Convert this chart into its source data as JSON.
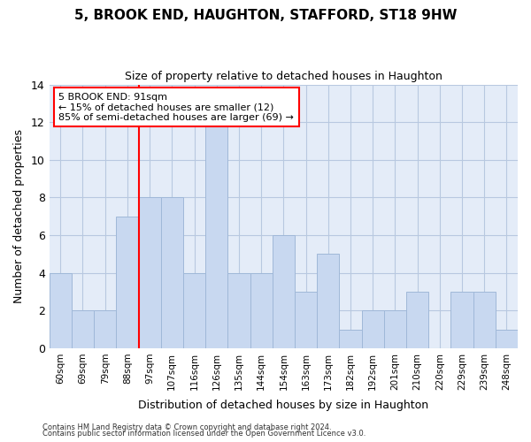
{
  "title": "5, BROOK END, HAUGHTON, STAFFORD, ST18 9HW",
  "subtitle": "Size of property relative to detached houses in Haughton",
  "xlabel": "Distribution of detached houses by size in Haughton",
  "ylabel": "Number of detached properties",
  "bin_labels": [
    "60sqm",
    "69sqm",
    "79sqm",
    "88sqm",
    "97sqm",
    "107sqm",
    "116sqm",
    "126sqm",
    "135sqm",
    "144sqm",
    "154sqm",
    "163sqm",
    "173sqm",
    "182sqm",
    "192sqm",
    "201sqm",
    "210sqm",
    "220sqm",
    "229sqm",
    "239sqm",
    "248sqm"
  ],
  "bar_values": [
    4,
    2,
    2,
    7,
    8,
    8,
    4,
    12,
    4,
    4,
    6,
    3,
    5,
    1,
    2,
    2,
    3,
    0,
    3,
    3,
    1
  ],
  "bar_color": "#c8d8f0",
  "bar_edgecolor": "#a0b8d8",
  "grid_color": "#b8c8e0",
  "background_color": "#e4ecf8",
  "red_line_x": 3.5,
  "annotation_line1": "5 BROOK END: 91sqm",
  "annotation_line2": "← 15% of detached houses are smaller (12)",
  "annotation_line3": "85% of semi-detached houses are larger (69) →",
  "annotation_box_color": "white",
  "annotation_box_edgecolor": "red",
  "ylim": [
    0,
    14
  ],
  "yticks": [
    0,
    2,
    4,
    6,
    8,
    10,
    12,
    14
  ],
  "footer_line1": "Contains HM Land Registry data © Crown copyright and database right 2024.",
  "footer_line2": "Contains public sector information licensed under the Open Government Licence v3.0."
}
